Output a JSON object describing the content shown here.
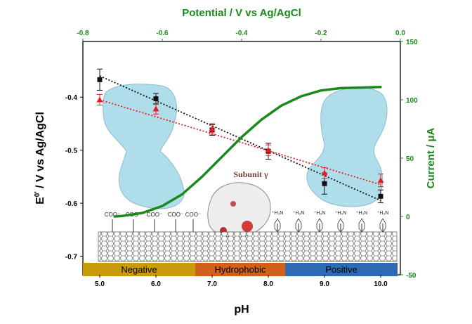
{
  "chart_data": {
    "type": "scatter",
    "title": "",
    "top_axis": {
      "label": "Potential / V vs Ag/AgCl",
      "range": [
        -0.8,
        0.0
      ],
      "ticks": [
        "-0.8",
        "-0.6",
        "-0.4",
        "-0.2",
        "0.0"
      ],
      "tick_values": [
        -0.8,
        -0.6,
        -0.4,
        -0.2,
        0.0
      ],
      "color": "#1a8a1a"
    },
    "bottom_axis": {
      "label": "pH",
      "range": [
        4.7,
        10.35
      ],
      "ticks": [
        "5.0",
        "6.0",
        "7.0",
        "8.0",
        "9.0",
        "10.0"
      ],
      "tick_values": [
        5.0,
        6.0,
        7.0,
        8.0,
        9.0,
        10.0
      ]
    },
    "left_axis": {
      "label": "E0' / V vs Ag/AgCl",
      "label_main": "E",
      "label_sup": "0'",
      "label_rest": " / V vs Ag/AgCl",
      "range": [
        -0.735,
        -0.295
      ],
      "ticks": [
        "-0.4",
        "-0.5",
        "-0.6",
        "-0.7"
      ],
      "tick_values": [
        -0.4,
        -0.5,
        -0.6,
        -0.7
      ]
    },
    "right_axis": {
      "label": "Current / μA",
      "range": [
        -50,
        150
      ],
      "ticks": [
        "150",
        "100",
        "50",
        "0",
        "-50"
      ],
      "tick_values": [
        150,
        100,
        50,
        0,
        -50
      ],
      "color": "#1a8a1a"
    },
    "series": [
      {
        "marker": "square",
        "color": "#111111",
        "x": [
          5.0,
          6.0,
          7.0,
          8.0,
          9.0,
          10.0
        ],
        "y": [
          -0.367,
          -0.403,
          -0.462,
          -0.502,
          -0.563,
          -0.587
        ],
        "err": [
          0.02,
          0.01,
          0.01,
          0.015,
          0.02,
          0.012
        ],
        "fit": {
          "x": [
            5.0,
            10.0
          ],
          "y": [
            -0.36,
            -0.595
          ]
        }
      },
      {
        "marker": "triangle",
        "color": "#e02020",
        "x": [
          5.0,
          6.0,
          7.0,
          8.0,
          9.0,
          10.0
        ],
        "y": [
          -0.405,
          -0.422,
          -0.46,
          -0.5,
          -0.543,
          -0.557
        ],
        "err": [
          0.01,
          0.01,
          0.01,
          0.01,
          0.01,
          0.012
        ],
        "fit": {
          "x": [
            5.0,
            10.0
          ],
          "y": [
            -0.405,
            -0.565
          ]
        }
      }
    ],
    "current_curve": {
      "color": "#1a8a1a",
      "potential": [
        -0.72,
        -0.7,
        -0.65,
        -0.6,
        -0.55,
        -0.5,
        -0.45,
        -0.4,
        -0.35,
        -0.3,
        -0.25,
        -0.2,
        -0.15,
        -0.1,
        -0.05
      ],
      "current": [
        0,
        0.5,
        3,
        9,
        19,
        34,
        51,
        68,
        83,
        95,
        103,
        108,
        110,
        110.5,
        111
      ]
    },
    "bands": [
      {
        "label": "Negative",
        "from": 4.7,
        "to": 6.7,
        "color": "#c99a0a"
      },
      {
        "label": "Hydrophobic",
        "from": 6.7,
        "to": 8.3,
        "color": "#d0601c"
      },
      {
        "label": "Positive",
        "from": 8.3,
        "to": 10.3,
        "color": "#2f6bb2"
      }
    ],
    "annotations": {
      "subunit": "Subunit γ",
      "coo": "COO⁻",
      "nh3": "⁺H₃N"
    }
  }
}
